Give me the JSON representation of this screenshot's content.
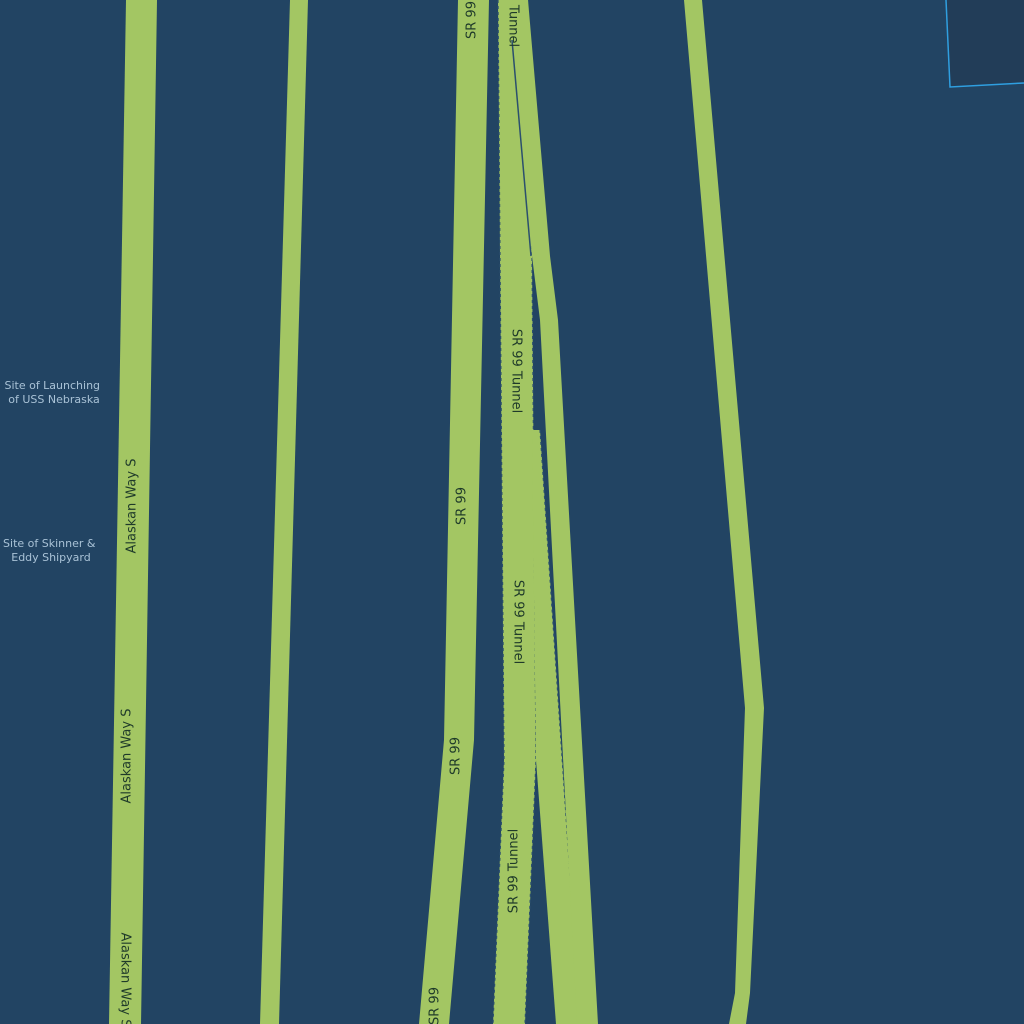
{
  "map": {
    "colors": {
      "water": "#224463",
      "road": "#a3c663",
      "road_label": "#1f3a2a",
      "poi_label": "#a9c2d6",
      "boundary": "#2f9fe0",
      "land_patch": "#223d58"
    },
    "roads": [
      {
        "id": "alaskan-way-s",
        "name": "Alaskan Way S",
        "labels": [
          "Alaskan Way S",
          "Alaskan Way S",
          "Alaskan Way S"
        ]
      },
      {
        "id": "minor-road",
        "name": ""
      },
      {
        "id": "sr-99",
        "name": "SR 99",
        "labels": [
          "SR 99",
          "SR 99",
          "SR 99",
          "SR 99"
        ]
      },
      {
        "id": "sr-99-tunnel",
        "name": "SR 99 Tunnel",
        "labels": [
          "Tunnel",
          "SR 99 Tunnel",
          "SR 99 Tunnel",
          "SR 99 Tunnel"
        ]
      },
      {
        "id": "ramp",
        "name": ""
      },
      {
        "id": "east-road",
        "name": ""
      }
    ],
    "pois": [
      {
        "lines": [
          "Site of Launching",
          "of USS Nebraska"
        ]
      },
      {
        "lines": [
          "Site of Skinner &",
          "Eddy Shipyard"
        ]
      }
    ]
  }
}
